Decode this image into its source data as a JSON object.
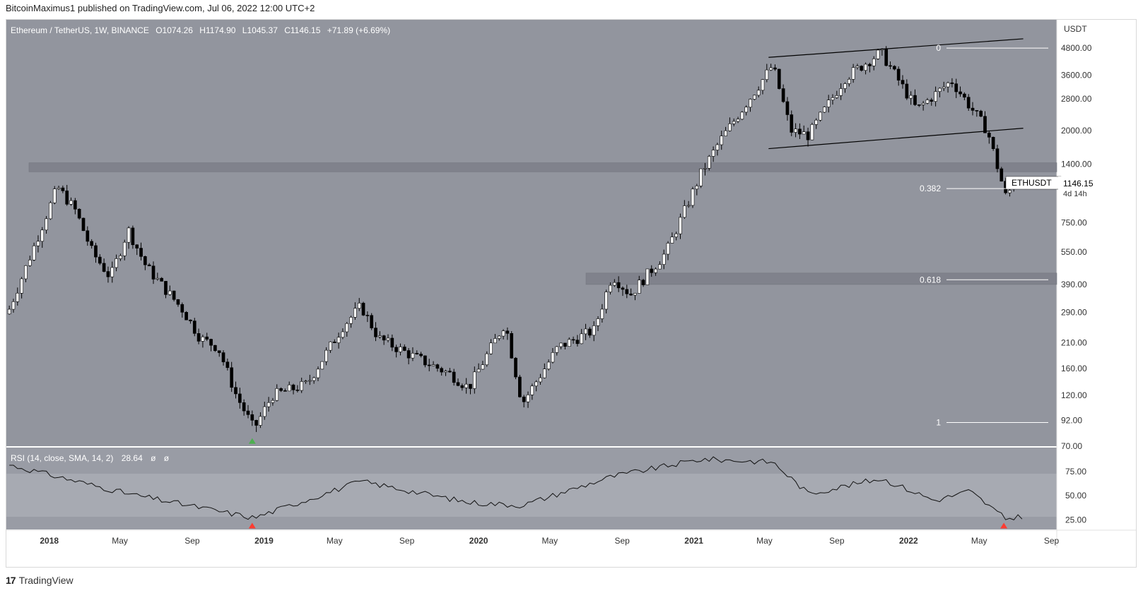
{
  "header": {
    "publisher": "BitcoinMaximus1 published on TradingView.com, Jul 06, 2022 12:00 UTC+2"
  },
  "legend": {
    "symbol": "Ethereum / TetherUS, 1W, BINANCE",
    "o_label": "O",
    "o_value": "1074.26",
    "h_label": "H",
    "h_value": "1174.90",
    "l_label": "L",
    "l_value": "1045.37",
    "c_label": "C",
    "c_value": "1146.15",
    "change": "+71.89 (+6.69%)"
  },
  "price_axis": {
    "unit": "USDT",
    "ticks": [
      "4800.00",
      "3600.00",
      "2800.00",
      "2000.00",
      "1400.00",
      "750.00",
      "550.00",
      "390.00",
      "290.00",
      "210.00",
      "160.00",
      "120.00",
      "92.00",
      "70.00"
    ]
  },
  "last_price": {
    "symbol": "ETHUSDT",
    "value": "1146.15",
    "countdown": "4d 14h"
  },
  "fib": {
    "level_0": "0",
    "level_0382": "0.382",
    "level_0618": "0.618",
    "level_1": "1"
  },
  "rsi": {
    "label": "RSI (14, close, SMA, 14, 2)",
    "value": "28.64",
    "empty1": "ø",
    "empty2": "ø",
    "ticks": [
      "75.00",
      "50.00",
      "25.00"
    ]
  },
  "time_axis": {
    "labels": [
      "2018",
      "May",
      "Sep",
      "2019",
      "May",
      "Sep",
      "2020",
      "May",
      "Sep",
      "2021",
      "May",
      "Sep",
      "2022",
      "May",
      "Sep"
    ]
  },
  "footer": {
    "brand": "TradingView"
  },
  "colors": {
    "chart_bg": "#92959e",
    "rsi_bg": "#999ca5",
    "rsi_band": "#a7aab2",
    "zone": "#7c7f88",
    "bull_candle": "#ffffff",
    "bear_candle": "#000000",
    "up_marker": "#4caf50",
    "down_marker": "#ff3b30"
  },
  "chart_data": {
    "type": "candlestick",
    "series_ohlc_weekly_approx": [
      {
        "date": "2017-11",
        "close": 300
      },
      {
        "date": "2018-01",
        "close": 1100
      },
      {
        "date": "2018-02",
        "close": 850
      },
      {
        "date": "2018-03",
        "close": 550
      },
      {
        "date": "2018-04",
        "close": 420
      },
      {
        "date": "2018-05",
        "close": 700
      },
      {
        "date": "2018-06",
        "close": 470
      },
      {
        "date": "2018-08",
        "close": 300
      },
      {
        "date": "2018-09",
        "close": 220
      },
      {
        "date": "2018-10",
        "close": 200
      },
      {
        "date": "2018-11",
        "close": 120
      },
      {
        "date": "2018-12",
        "close": 84
      },
      {
        "date": "2019-01",
        "close": 120
      },
      {
        "date": "2019-03",
        "close": 135
      },
      {
        "date": "2019-05",
        "close": 250
      },
      {
        "date": "2019-06",
        "close": 310
      },
      {
        "date": "2019-07",
        "close": 220
      },
      {
        "date": "2019-09",
        "close": 180
      },
      {
        "date": "2019-11",
        "close": 150
      },
      {
        "date": "2019-12",
        "close": 130
      },
      {
        "date": "2020-02",
        "close": 260
      },
      {
        "date": "2020-03",
        "close": 110
      },
      {
        "date": "2020-05",
        "close": 200
      },
      {
        "date": "2020-07",
        "close": 240
      },
      {
        "date": "2020-08",
        "close": 430
      },
      {
        "date": "2020-09",
        "close": 350
      },
      {
        "date": "2020-11",
        "close": 550
      },
      {
        "date": "2021-01",
        "close": 1300
      },
      {
        "date": "2021-02",
        "close": 1800
      },
      {
        "date": "2021-05",
        "close": 4000
      },
      {
        "date": "2021-06",
        "close": 2000
      },
      {
        "date": "2021-07",
        "close": 1900
      },
      {
        "date": "2021-09",
        "close": 3500
      },
      {
        "date": "2021-11",
        "close": 4600
      },
      {
        "date": "2022-01",
        "close": 2500
      },
      {
        "date": "2022-03",
        "close": 3400
      },
      {
        "date": "2022-05",
        "close": 2000
      },
      {
        "date": "2022-06",
        "close": 1000
      },
      {
        "date": "2022-07",
        "close": 1146.15
      }
    ],
    "rsi_values_approx": [
      {
        "date": "2018-01",
        "value": 82
      },
      {
        "date": "2018-05",
        "value": 52
      },
      {
        "date": "2018-12",
        "value": 27
      },
      {
        "date": "2019-06",
        "value": 65
      },
      {
        "date": "2019-12",
        "value": 43
      },
      {
        "date": "2020-03",
        "value": 40
      },
      {
        "date": "2020-08",
        "value": 70
      },
      {
        "date": "2021-01",
        "value": 88
      },
      {
        "date": "2021-05",
        "value": 85
      },
      {
        "date": "2021-07",
        "value": 52
      },
      {
        "date": "2021-11",
        "value": 68
      },
      {
        "date": "2022-02",
        "value": 45
      },
      {
        "date": "2022-04",
        "value": 55
      },
      {
        "date": "2022-06",
        "value": 26
      },
      {
        "date": "2022-07",
        "value": 29
      }
    ],
    "ylabel": "USDT",
    "yscale": "log",
    "ylim": [
      70,
      5500
    ],
    "xlim": [
      "2017-11",
      "2022-09"
    ],
    "zones": [
      {
        "low": 1290,
        "high": 1420
      },
      {
        "low": 390,
        "high": 440
      }
    ],
    "fib_levels": [
      {
        "label": "0",
        "price": 4800
      },
      {
        "label": "0.382",
        "price": 1080
      },
      {
        "label": "0.618",
        "price": 410
      },
      {
        "label": "1",
        "price": 90
      }
    ],
    "channel": {
      "upper": [
        {
          "date": "2021-05",
          "price": 4350
        },
        {
          "date": "2022-07",
          "price": 5300
        }
      ],
      "lower": [
        {
          "date": "2021-05",
          "price": 1650
        },
        {
          "date": "2022-07",
          "price": 2050
        }
      ]
    },
    "markers": [
      {
        "date": "2018-12",
        "type": "bullish",
        "pane": "price"
      },
      {
        "date": "2018-12",
        "type": "bearish",
        "pane": "rsi"
      },
      {
        "date": "2022-06",
        "type": "bearish",
        "pane": "rsi"
      }
    ],
    "rsi_ylim": [
      15,
      100
    ]
  }
}
